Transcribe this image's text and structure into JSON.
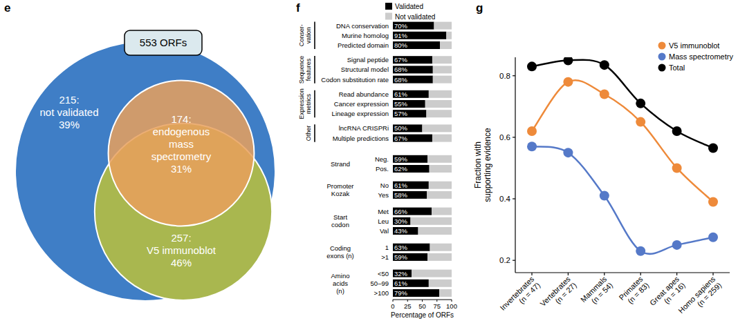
{
  "chart_data": [
    {
      "type": "venn",
      "title": "e",
      "total": 553,
      "total_label": "553 ORFs",
      "sets": [
        {
          "name": [
            "not validated"
          ],
          "value": 215,
          "value_label": "215:",
          "percent": 39,
          "percent_label": "39%",
          "color": "#3f7ec6"
        },
        {
          "name": [
            "V5 immunoblot"
          ],
          "value": 257,
          "value_label": "257:",
          "percent": 46,
          "percent_label": "46%",
          "color": "#a9b74f"
        },
        {
          "name": [
            "endogenous",
            "mass",
            "spectrometry"
          ],
          "value": 174,
          "value_label": "174:",
          "percent": 31,
          "percent_label": "31%",
          "color": "#e9a05c"
        }
      ]
    },
    {
      "type": "bar",
      "title": "f",
      "orientation": "horizontal",
      "stacked": true,
      "data_labels": true,
      "legend": "top",
      "sections": [
        {
          "label": [
            "Conser-",
            "vation"
          ],
          "categories": [
            "DNA conservation",
            "Murine homolog",
            "Predicted domain"
          ]
        },
        {
          "label": [
            "Sequence",
            "features"
          ],
          "categories": [
            "Signal peptide",
            "Structural model",
            "Codon substitution rate"
          ]
        },
        {
          "label": [
            "Expression",
            "metrics"
          ],
          "categories": [
            "Read abundance",
            "Cancer expression",
            "Lineage expression"
          ]
        },
        {
          "label": [
            "Other"
          ],
          "categories": [
            "lncRNA CRISPRi",
            "Multiple predictions"
          ]
        }
      ],
      "groups": [
        {
          "label": [
            "Strand"
          ],
          "categories": [
            "Neg.",
            "Pos."
          ]
        },
        {
          "label": [
            "Promoter",
            "Kozak"
          ],
          "categories": [
            "No",
            "Yes"
          ]
        },
        {
          "label": [
            "Start",
            "codon"
          ],
          "categories": [
            "Met",
            "Leu",
            "Val"
          ]
        },
        {
          "label": [
            "Coding",
            "exons (n)"
          ],
          "categories": [
            "1",
            ">1"
          ]
        },
        {
          "label": [
            "Amino",
            "acids",
            "(n)"
          ],
          "categories": [
            "<50",
            "50–99",
            ">100"
          ]
        }
      ],
      "series": [
        {
          "name": "Validated",
          "color": "#000000",
          "values": [
            70,
            91,
            80,
            67,
            68,
            68,
            61,
            55,
            57,
            50,
            67,
            59,
            62,
            61,
            58,
            66,
            30,
            43,
            63,
            59,
            32,
            61,
            79
          ],
          "value_labels": [
            "70%",
            "91%",
            "80%",
            "67%",
            "68%",
            "68%",
            "61%",
            "55%",
            "57%",
            "50%",
            "67%",
            "59%",
            "62%",
            "61%",
            "58%",
            "66%",
            "30%",
            "43%",
            "63%",
            "59%",
            "32%",
            "61%",
            "79%"
          ]
        },
        {
          "name": "Not validated",
          "color": "#cccccc",
          "values": [
            30,
            9,
            20,
            33,
            32,
            32,
            39,
            45,
            43,
            50,
            33,
            41,
            38,
            39,
            42,
            34,
            70,
            57,
            37,
            41,
            68,
            39,
            21
          ]
        }
      ],
      "xlim": [
        0,
        100
      ],
      "xticks": [
        0,
        25,
        50,
        75,
        100
      ],
      "xlabel": "Percentage of ORFs"
    },
    {
      "type": "line",
      "title": "g",
      "line_style": "smooth",
      "marker": "circle",
      "legend": "upper right",
      "categories": [
        [
          "Invertebrates",
          "(n = 47)"
        ],
        [
          "Vertebrates",
          "(n = 27)"
        ],
        [
          "Mammals",
          "(n = 54)"
        ],
        [
          "Primates",
          "(n = 83)"
        ],
        [
          "Great apes",
          "(n = 16)"
        ],
        [
          "Homo sapiens",
          "(n = 259)"
        ]
      ],
      "ylabel": [
        "Fraction with",
        "supporting evidence"
      ],
      "ylim": [
        0.16,
        0.86
      ],
      "yticks": [
        0.2,
        0.4,
        0.6,
        0.8
      ],
      "series": [
        {
          "name": "V5 immunoblot",
          "color": "#ee8a3a",
          "values": [
            0.62,
            0.78,
            0.74,
            0.65,
            0.5,
            0.39
          ]
        },
        {
          "name": "Mass spectrometry",
          "color": "#5579c8",
          "values": [
            0.57,
            0.55,
            0.41,
            0.23,
            0.25,
            0.275
          ]
        },
        {
          "name": "Total",
          "color": "#000000",
          "values": [
            0.83,
            0.85,
            0.835,
            0.71,
            0.62,
            0.565
          ]
        }
      ]
    }
  ]
}
